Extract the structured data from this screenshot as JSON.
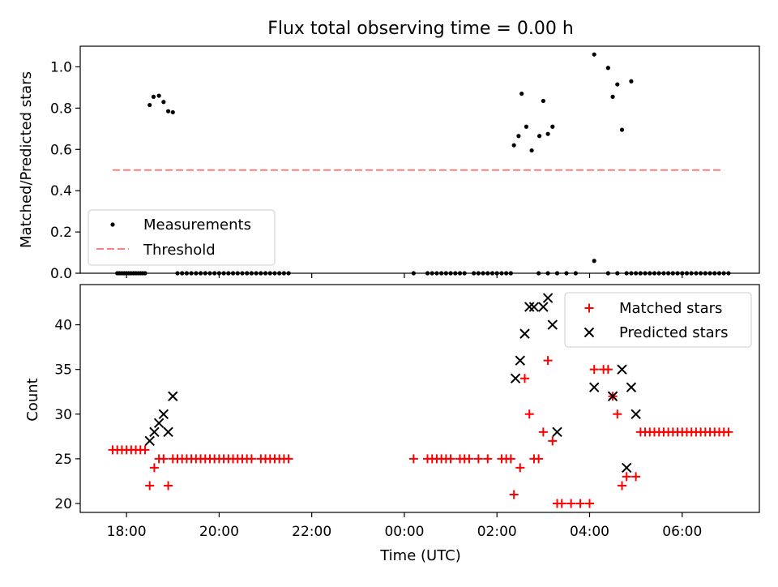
{
  "title": "Flux total observing time = 0.00 h",
  "xlabel": "Time (UTC)",
  "x_tick_labels": [
    "18:00",
    "20:00",
    "22:00",
    "00:00",
    "02:00",
    "04:00",
    "06:00"
  ],
  "colors": {
    "measurement": "#000000",
    "threshold": "#ff7f7f",
    "matched": "#ff0000",
    "predicted": "#000000"
  },
  "chart_data": [
    {
      "type": "scatter",
      "name": "top",
      "ylabel": "Matched/Predicted stars",
      "xlim": [
        "17:00",
        "07:40"
      ],
      "ylim": [
        0,
        1.1
      ],
      "y_ticks": [
        0.0,
        0.2,
        0.4,
        0.6,
        0.8,
        1.0
      ],
      "y_tick_labels": [
        "0.0",
        "0.2",
        "0.4",
        "0.6",
        "0.8",
        "1.0"
      ],
      "legend": "lower-left",
      "series": [
        {
          "name": "Measurements",
          "marker": "dot",
          "points": [
            [
              "17:48",
              0
            ],
            [
              "17:51",
              0
            ],
            [
              "17:54",
              0
            ],
            [
              "17:57",
              0
            ],
            [
              "18:00",
              0
            ],
            [
              "18:03",
              0
            ],
            [
              "18:06",
              0
            ],
            [
              "18:09",
              0
            ],
            [
              "18:12",
              0
            ],
            [
              "18:15",
              0
            ],
            [
              "18:18",
              0
            ],
            [
              "18:21",
              0
            ],
            [
              "18:24",
              0
            ],
            [
              "18:30",
              0.815
            ],
            [
              "18:35",
              0.855
            ],
            [
              "18:42",
              0.86
            ],
            [
              "18:48",
              0.83
            ],
            [
              "18:54",
              0.785
            ],
            [
              "19:00",
              0.78
            ],
            [
              "19:06",
              0
            ],
            [
              "19:12",
              0
            ],
            [
              "19:18",
              0
            ],
            [
              "19:24",
              0
            ],
            [
              "19:30",
              0
            ],
            [
              "19:36",
              0
            ],
            [
              "19:42",
              0
            ],
            [
              "19:48",
              0
            ],
            [
              "19:54",
              0
            ],
            [
              "20:00",
              0
            ],
            [
              "20:06",
              0
            ],
            [
              "20:12",
              0
            ],
            [
              "20:18",
              0
            ],
            [
              "20:24",
              0
            ],
            [
              "20:30",
              0
            ],
            [
              "20:36",
              0
            ],
            [
              "20:42",
              0
            ],
            [
              "20:48",
              0
            ],
            [
              "20:54",
              0
            ],
            [
              "21:00",
              0
            ],
            [
              "21:06",
              0
            ],
            [
              "21:12",
              0
            ],
            [
              "21:18",
              0
            ],
            [
              "21:24",
              0
            ],
            [
              "21:30",
              0
            ],
            [
              "00:12",
              0
            ],
            [
              "00:30",
              0
            ],
            [
              "00:36",
              0
            ],
            [
              "00:42",
              0
            ],
            [
              "00:48",
              0
            ],
            [
              "00:54",
              0
            ],
            [
              "01:00",
              0
            ],
            [
              "01:06",
              0
            ],
            [
              "01:12",
              0
            ],
            [
              "01:18",
              0
            ],
            [
              "01:30",
              0
            ],
            [
              "01:36",
              0
            ],
            [
              "01:42",
              0
            ],
            [
              "01:48",
              0
            ],
            [
              "01:54",
              0
            ],
            [
              "02:00",
              0
            ],
            [
              "02:06",
              0
            ],
            [
              "02:12",
              0
            ],
            [
              "02:18",
              0
            ],
            [
              "02:22",
              0.62
            ],
            [
              "02:28",
              0.665
            ],
            [
              "02:32",
              0.87
            ],
            [
              "02:38",
              0.71
            ],
            [
              "02:45",
              0.595
            ],
            [
              "02:55",
              0.665
            ],
            [
              "03:00",
              0.835
            ],
            [
              "03:06",
              0.675
            ],
            [
              "03:12",
              0.71
            ],
            [
              "02:54",
              0
            ],
            [
              "03:06",
              0
            ],
            [
              "03:18",
              0
            ],
            [
              "03:30",
              0
            ],
            [
              "03:42",
              0
            ],
            [
              "04:06",
              0.06
            ],
            [
              "04:06",
              1.06
            ],
            [
              "04:24",
              0.995
            ],
            [
              "04:30",
              0.855
            ],
            [
              "04:36",
              0.915
            ],
            [
              "04:42",
              0.695
            ],
            [
              "04:54",
              0.93
            ],
            [
              "04:24",
              0
            ],
            [
              "04:36",
              0
            ],
            [
              "04:48",
              0
            ],
            [
              "04:54",
              0
            ],
            [
              "05:00",
              0
            ],
            [
              "05:06",
              0
            ],
            [
              "05:12",
              0
            ],
            [
              "05:18",
              0
            ],
            [
              "05:24",
              0
            ],
            [
              "05:30",
              0
            ],
            [
              "05:36",
              0
            ],
            [
              "05:42",
              0
            ],
            [
              "05:48",
              0
            ],
            [
              "05:54",
              0
            ],
            [
              "06:00",
              0
            ],
            [
              "06:06",
              0
            ],
            [
              "06:12",
              0
            ],
            [
              "06:18",
              0
            ],
            [
              "06:24",
              0
            ],
            [
              "06:30",
              0
            ],
            [
              "06:36",
              0
            ],
            [
              "06:42",
              0
            ],
            [
              "06:48",
              0
            ],
            [
              "06:54",
              0
            ],
            [
              "07:00",
              0
            ]
          ]
        },
        {
          "name": "Threshold",
          "marker": "dashed-line",
          "points": [
            [
              "17:42",
              0.5
            ],
            [
              "06:54",
              0.5
            ]
          ]
        }
      ]
    },
    {
      "type": "scatter",
      "name": "bottom",
      "ylabel": "Count",
      "xlim": [
        "17:00",
        "07:40"
      ],
      "ylim": [
        19,
        44.5
      ],
      "y_ticks": [
        20,
        25,
        30,
        35,
        40
      ],
      "y_tick_labels": [
        "20",
        "25",
        "30",
        "35",
        "40"
      ],
      "legend": "top-right",
      "series": [
        {
          "name": "Matched stars",
          "marker": "plus",
          "points": [
            [
              "17:42",
              26
            ],
            [
              "17:48",
              26
            ],
            [
              "17:54",
              26
            ],
            [
              "18:00",
              26
            ],
            [
              "18:06",
              26
            ],
            [
              "18:12",
              26
            ],
            [
              "18:18",
              26
            ],
            [
              "18:24",
              26
            ],
            [
              "18:30",
              22
            ],
            [
              "18:36",
              24
            ],
            [
              "18:42",
              25
            ],
            [
              "18:48",
              25
            ],
            [
              "18:54",
              22
            ],
            [
              "19:00",
              25
            ],
            [
              "19:06",
              25
            ],
            [
              "19:12",
              25
            ],
            [
              "19:18",
              25
            ],
            [
              "19:24",
              25
            ],
            [
              "19:30",
              25
            ],
            [
              "19:36",
              25
            ],
            [
              "19:42",
              25
            ],
            [
              "19:48",
              25
            ],
            [
              "19:54",
              25
            ],
            [
              "20:00",
              25
            ],
            [
              "20:06",
              25
            ],
            [
              "20:12",
              25
            ],
            [
              "20:18",
              25
            ],
            [
              "20:24",
              25
            ],
            [
              "20:30",
              25
            ],
            [
              "20:36",
              25
            ],
            [
              "20:42",
              25
            ],
            [
              "20:54",
              25
            ],
            [
              "21:00",
              25
            ],
            [
              "21:06",
              25
            ],
            [
              "21:12",
              25
            ],
            [
              "21:18",
              25
            ],
            [
              "21:24",
              25
            ],
            [
              "21:30",
              25
            ],
            [
              "00:12",
              25
            ],
            [
              "00:30",
              25
            ],
            [
              "00:36",
              25
            ],
            [
              "00:42",
              25
            ],
            [
              "00:48",
              25
            ],
            [
              "00:54",
              25
            ],
            [
              "01:00",
              25
            ],
            [
              "01:12",
              25
            ],
            [
              "01:18",
              25
            ],
            [
              "01:24",
              25
            ],
            [
              "01:36",
              25
            ],
            [
              "01:48",
              25
            ],
            [
              "02:06",
              25
            ],
            [
              "02:12",
              25
            ],
            [
              "02:18",
              25
            ],
            [
              "02:22",
              21
            ],
            [
              "02:30",
              24
            ],
            [
              "02:36",
              34
            ],
            [
              "02:42",
              30
            ],
            [
              "02:48",
              25
            ],
            [
              "02:54",
              25
            ],
            [
              "03:00",
              28
            ],
            [
              "03:06",
              36
            ],
            [
              "03:12",
              27
            ],
            [
              "03:18",
              20
            ],
            [
              "03:24",
              20
            ],
            [
              "03:36",
              20
            ],
            [
              "03:48",
              20
            ],
            [
              "04:00",
              20
            ],
            [
              "04:06",
              35
            ],
            [
              "04:18",
              35
            ],
            [
              "04:24",
              35
            ],
            [
              "04:30",
              32
            ],
            [
              "04:36",
              30
            ],
            [
              "04:42",
              22
            ],
            [
              "04:48",
              23
            ],
            [
              "05:00",
              23
            ],
            [
              "05:06",
              28
            ],
            [
              "05:12",
              28
            ],
            [
              "05:18",
              28
            ],
            [
              "05:24",
              28
            ],
            [
              "05:30",
              28
            ],
            [
              "05:36",
              28
            ],
            [
              "05:42",
              28
            ],
            [
              "05:48",
              28
            ],
            [
              "05:54",
              28
            ],
            [
              "06:00",
              28
            ],
            [
              "06:06",
              28
            ],
            [
              "06:12",
              28
            ],
            [
              "06:18",
              28
            ],
            [
              "06:24",
              28
            ],
            [
              "06:30",
              28
            ],
            [
              "06:36",
              28
            ],
            [
              "06:42",
              28
            ],
            [
              "06:48",
              28
            ],
            [
              "06:54",
              28
            ],
            [
              "07:00",
              28
            ]
          ]
        },
        {
          "name": "Predicted stars",
          "marker": "x",
          "points": [
            [
              "18:30",
              27
            ],
            [
              "18:36",
              28
            ],
            [
              "18:42",
              29
            ],
            [
              "18:48",
              30
            ],
            [
              "18:54",
              28
            ],
            [
              "19:00",
              32
            ],
            [
              "02:24",
              34
            ],
            [
              "02:30",
              36
            ],
            [
              "02:36",
              39
            ],
            [
              "02:42",
              42
            ],
            [
              "02:48",
              42
            ],
            [
              "03:00",
              42
            ],
            [
              "03:06",
              43
            ],
            [
              "03:12",
              40
            ],
            [
              "03:18",
              28
            ],
            [
              "04:06",
              33
            ],
            [
              "04:30",
              32
            ],
            [
              "04:42",
              35
            ],
            [
              "04:48",
              24
            ],
            [
              "04:54",
              33
            ],
            [
              "05:00",
              30
            ]
          ]
        }
      ]
    }
  ]
}
